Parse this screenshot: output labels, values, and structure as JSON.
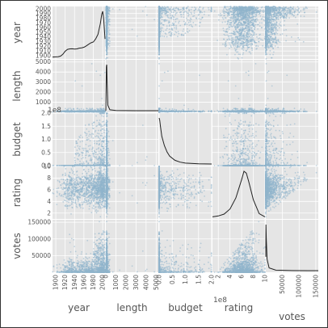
{
  "chart_data": {
    "type": "scatter",
    "subtype": "scatter_matrix",
    "variables": [
      "year",
      "length",
      "budget",
      "rating",
      "votes"
    ],
    "diagonal": "kde",
    "grid": true,
    "colors": {
      "panel_bg": "#e5e5e5",
      "grid": "#ffffff",
      "points": "#8fb4cc",
      "kde_line": "#222222",
      "text": "#555555"
    },
    "ranges": {
      "year": [
        1893,
        2005
      ],
      "length": [
        1,
        5220
      ],
      "budget": [
        0,
        200000000
      ],
      "rating": [
        1,
        10
      ],
      "votes": [
        0,
        157608
      ]
    },
    "axis_labels": {
      "x": [
        "year",
        "length",
        "budget",
        "rating",
        "votes"
      ],
      "y": [
        "year",
        "length",
        "budget",
        "rating",
        "votes"
      ]
    },
    "ticks": {
      "year": {
        "y_ticks": [
          1900,
          1910,
          1920,
          1930,
          1940,
          1950,
          1960,
          1970,
          1980,
          1990,
          2000
        ],
        "y_labels": [
          "1900",
          "1910",
          "1920",
          "1930",
          "1940",
          "1950",
          "1960",
          "1970",
          "1980",
          "1990",
          "2000"
        ],
        "x_ticks": [
          1900,
          1920,
          1940,
          1960,
          1980,
          2000
        ],
        "x_labels": [
          "1900",
          "1920",
          "1940",
          "1960",
          "1980",
          "2000"
        ]
      },
      "length": {
        "y_ticks": [
          1000,
          2000,
          3000,
          4000,
          5000
        ],
        "y_labels": [
          "1000",
          "2000",
          "3000",
          "4000",
          "5000"
        ],
        "x_ticks": [
          0,
          1000,
          2000,
          3000,
          4000,
          5000
        ],
        "x_labels": [
          "0",
          "1000",
          "2000",
          "3000",
          "4000",
          "5000"
        ]
      },
      "budget": {
        "y_ticks": [
          0,
          50000000,
          100000000,
          150000000,
          200000000
        ],
        "y_labels": [
          "0.0",
          "0.5",
          "1.0",
          "1.5",
          "2.0"
        ],
        "x_ticks": [
          0,
          50000000,
          100000000,
          150000000,
          200000000
        ],
        "x_labels": [
          "0.0",
          "0.5",
          "1.0",
          "1.5",
          "2.0"
        ],
        "offset": "1e8"
      },
      "rating": {
        "y_ticks": [
          2,
          4,
          6,
          8,
          10
        ],
        "y_labels": [
          "2",
          "4",
          "6",
          "8",
          "10"
        ],
        "x_ticks": [
          2,
          4,
          6,
          8,
          10
        ],
        "x_labels": [
          "2",
          "4",
          "6",
          "8",
          "10"
        ]
      },
      "votes": {
        "y_ticks": [
          50000,
          100000,
          150000
        ],
        "y_labels": [
          "50000",
          "100000",
          "150000"
        ],
        "x_ticks": [
          50000,
          100000,
          150000
        ],
        "x_labels": [
          "50000",
          "100000",
          "150000"
        ]
      }
    },
    "kde": {
      "year": {
        "x": [
          1893,
          1900,
          1905,
          1910,
          1915,
          1920,
          1925,
          1930,
          1935,
          1940,
          1945,
          1950,
          1955,
          1960,
          1965,
          1970,
          1975,
          1980,
          1985,
          1990,
          1995,
          1998,
          2000,
          2002,
          2005
        ],
        "y": [
          0.002,
          0.003,
          0.004,
          0.008,
          0.02,
          0.04,
          0.052,
          0.055,
          0.056,
          0.054,
          0.055,
          0.06,
          0.062,
          0.066,
          0.075,
          0.085,
          0.095,
          0.1,
          0.12,
          0.15,
          0.22,
          0.28,
          0.3,
          0.25,
          0.12
        ]
      },
      "length": {
        "x": [
          0,
          50,
          90,
          130,
          200,
          400,
          1000,
          3000,
          5220
        ],
        "y": [
          0.0,
          0.95,
          1.0,
          0.6,
          0.12,
          0.02,
          0.003,
          0.0005,
          0.0
        ]
      },
      "budget": {
        "x": [
          0,
          2000000,
          5000000,
          10000000,
          20000000,
          30000000,
          40000000,
          60000000,
          80000000,
          100000000,
          150000000,
          200000000
        ],
        "y": [
          1.0,
          0.95,
          0.82,
          0.6,
          0.4,
          0.26,
          0.17,
          0.08,
          0.04,
          0.02,
          0.005,
          0.0
        ]
      },
      "rating": {
        "x": [
          1,
          2,
          3,
          4,
          5,
          5.5,
          6,
          6.4,
          6.8,
          7.2,
          8,
          9,
          10
        ],
        "y": [
          0.01,
          0.03,
          0.07,
          0.18,
          0.42,
          0.62,
          0.82,
          1.0,
          0.96,
          0.78,
          0.38,
          0.08,
          0.01
        ]
      },
      "votes": {
        "x": [
          0,
          500,
          1500,
          4000,
          10000,
          30000,
          80000,
          157608
        ],
        "y": [
          0.3,
          1.0,
          0.7,
          0.25,
          0.06,
          0.01,
          0.001,
          0.0
        ]
      }
    }
  }
}
